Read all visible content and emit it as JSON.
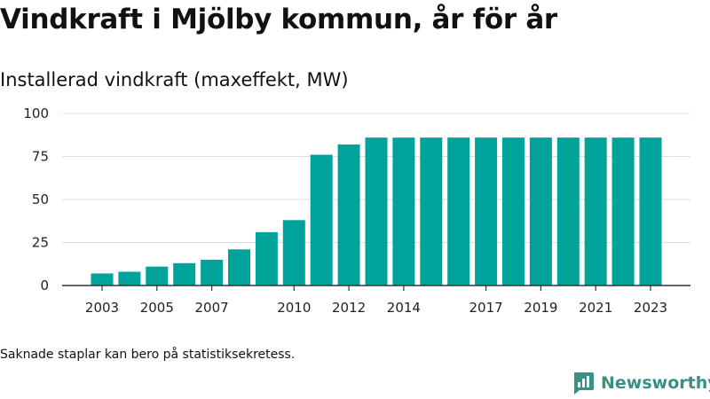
{
  "header": {
    "title": "Vindkraft i Mjölby kommun, år för år",
    "subtitle": "Installerad vindkraft (maxeffekt, MW)"
  },
  "footer": {
    "note": "Saknade staplar kan bero på statistiksekretess.",
    "brand": "Newsworthy",
    "brand_icon": "newsworthy-logo-icon"
  },
  "colors": {
    "bar": "#00a39a",
    "axis": "#333333",
    "grid": "#dddddd",
    "brand": "#3a8f85"
  },
  "chart_data": {
    "type": "bar",
    "title": "Installerad vindkraft (maxeffekt, MW)",
    "xlabel": "",
    "ylabel": "",
    "categories": [
      2003,
      2004,
      2005,
      2006,
      2007,
      2008,
      2009,
      2010,
      2011,
      2012,
      2013,
      2014,
      2015,
      2016,
      2017,
      2018,
      2019,
      2020,
      2021,
      2022,
      2023
    ],
    "values": [
      7,
      8,
      11,
      13,
      15,
      21,
      31,
      38,
      76,
      82,
      86,
      86,
      86,
      86,
      86,
      86,
      86,
      86,
      86,
      86,
      86
    ],
    "x_tick_labels": [
      "2003",
      "2005",
      "2007",
      "2010",
      "2012",
      "2014",
      "2017",
      "2019",
      "2021",
      "2023"
    ],
    "y_ticks": [
      "0",
      "25",
      "50",
      "75",
      "100"
    ],
    "ylim": [
      0,
      100
    ],
    "grid": "horizontal",
    "legend": "none"
  }
}
